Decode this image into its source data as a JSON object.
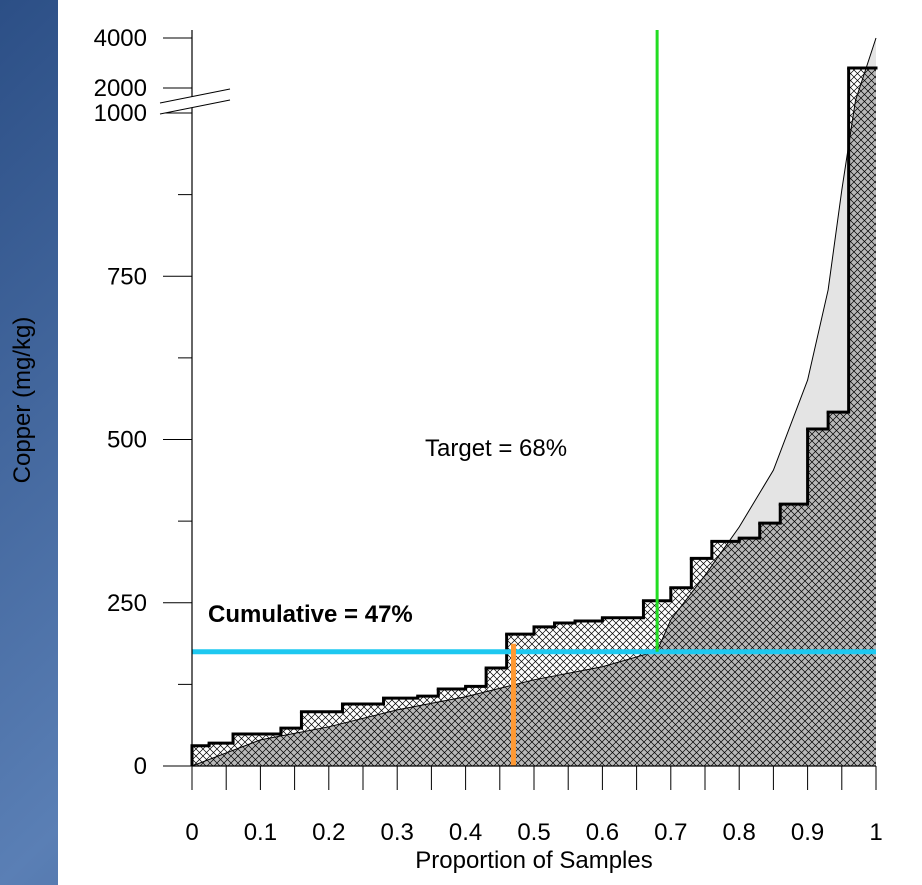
{
  "chart_data": {
    "type": "step",
    "x_label": "Proportion of Samples",
    "y_label": "Copper (mg/kg)",
    "annotations": [
      "Target = 68%",
      "Cumulative = 47%"
    ],
    "xlim": [
      0,
      1
    ],
    "xticks": [
      {
        "value": 0,
        "label": "0"
      },
      0.1,
      0.2,
      0.3,
      0.4,
      0.5,
      0.6,
      0.7,
      0.8,
      0.9,
      1
    ],
    "xminorticks": [
      0.05,
      0.15,
      0.25,
      0.35,
      0.45,
      0.55,
      0.65,
      0.75,
      0.85,
      0.95
    ],
    "ylim": [
      0,
      4000
    ],
    "ybreak": 1000,
    "yticks": [
      0,
      250,
      500,
      750,
      1000,
      2000,
      4000
    ],
    "yminorticks": [
      125,
      375,
      625,
      875
    ],
    "series": [
      {
        "color": "#000000",
        "bins": [
          0,
          0.025,
          0.06,
          0.13,
          0.16,
          0.22,
          0.28,
          0.33,
          0.36,
          0.4,
          0.43,
          0.46,
          0.5,
          0.53,
          0.56,
          0.6,
          0.66,
          0.7,
          0.73,
          0.76,
          0.8,
          0.83,
          0.86,
          0.9,
          0.93,
          0.96,
          1
        ],
        "values": [
          31,
          35,
          49,
          58,
          83,
          95,
          104,
          107,
          118,
          122,
          150,
          202,
          213,
          219,
          222,
          227,
          253,
          273,
          318,
          344,
          349,
          372,
          401,
          516,
          542,
          2800
        ]
      },
      {
        "color": "#000000",
        "x": [
          0,
          0.1,
          0.2,
          0.3,
          0.4,
          0.5,
          0.6,
          0.68,
          0.7,
          0.75,
          0.8,
          0.85,
          0.9,
          0.93,
          0.95,
          0.97,
          1
        ],
        "values": [
          0,
          40,
          60,
          86,
          106,
          132,
          152,
          176,
          224,
          292,
          366,
          453,
          591,
          729,
          882,
          1500,
          4000
        ]
      }
    ],
    "hlines": [
      {
        "value": 175,
        "color": "#1ec8f0"
      }
    ],
    "vlines": [
      {
        "value": 0.47,
        "from": 0,
        "to": 175,
        "color": "#ff9933"
      },
      {
        "value": 0.68,
        "from": 175,
        "to": 4000,
        "color": "#22dd22"
      }
    ]
  }
}
